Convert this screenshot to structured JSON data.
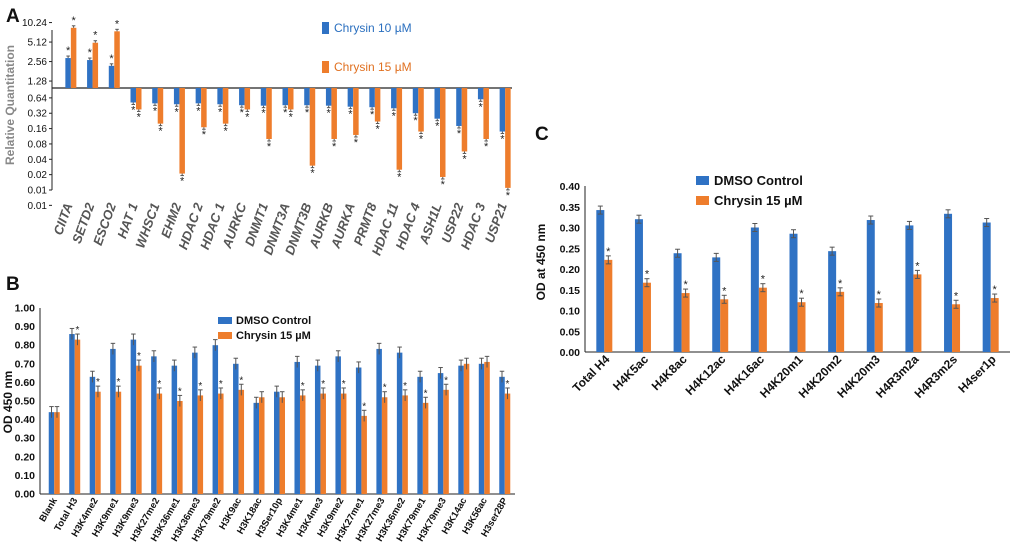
{
  "colors": {
    "blue": "#2f72c4",
    "orange": "#ee7d2c",
    "err": "#555555"
  },
  "chart_data": [
    {
      "panel": "A",
      "type": "bar",
      "ylabel": "Relative Quantitation",
      "yscale": "log2",
      "yticks": [
        "10.24",
        "5.12",
        "2.56",
        "1.28",
        "0.64",
        "0.32",
        "0.16",
        "0.08",
        "0.04",
        "0.02",
        "0.01",
        "0.01"
      ],
      "categories": [
        "CIITA",
        "SETD2",
        "ESCO2",
        "HAT 1",
        "WHSC1",
        "EHM2",
        "HDAC 2",
        "HDAC 1",
        "AURKC",
        "DNMT1",
        "DNMT3A",
        "DNMT3B",
        "AURKB",
        "AURKA",
        "PRMT8",
        "HDAC 11",
        "HDAC 4",
        "ASH1L",
        "USP22",
        "HDAC 3",
        "USP21"
      ],
      "series": [
        {
          "name": "Chrysin 10 µM",
          "values": [
            2.9,
            2.7,
            2.2,
            0.52,
            0.5,
            0.48,
            0.5,
            0.48,
            0.46,
            0.45,
            0.46,
            0.46,
            0.45,
            0.43,
            0.42,
            0.4,
            0.32,
            0.25,
            0.18,
            0.6,
            0.14
          ]
        },
        {
          "name": "Chrysin 15  µM",
          "values": [
            8.5,
            5.0,
            7.5,
            0.38,
            0.2,
            0.021,
            0.17,
            0.2,
            0.38,
            0.1,
            0.38,
            0.03,
            0.1,
            0.12,
            0.22,
            0.025,
            0.14,
            0.018,
            0.057,
            0.1,
            0.011
          ]
        }
      ],
      "sig_marker": "*"
    },
    {
      "panel": "B",
      "type": "bar",
      "ylabel": "OD 450 nm",
      "ylim": [
        0,
        1
      ],
      "yticks": [
        "0.00",
        "0.10",
        "0.20",
        "0.30",
        "0.40",
        "0.50",
        "0.60",
        "0.70",
        "0.80",
        "0.90",
        "1.00"
      ],
      "categories": [
        "Blank",
        "Total H3",
        "H3K4me2",
        "H3K9me1",
        "H3K9me3",
        "H3K27me2",
        "H3K36me1",
        "H3K36me3",
        "H3K79me2",
        "H3K9ac",
        "H3K18ac",
        "H3Ser10p",
        "H3K4me1",
        "H3K4me3",
        "H3K9me2",
        "H3K27me1",
        "H3K27me3",
        "H3K36me2",
        "H3K79me1",
        "H3K79me3",
        "H3K14ac",
        "H3K56ac",
        "H3ser28P"
      ],
      "series": [
        {
          "name": "DMSO Control",
          "values": [
            0.44,
            0.86,
            0.63,
            0.78,
            0.83,
            0.74,
            0.69,
            0.76,
            0.8,
            0.7,
            0.49,
            0.55,
            0.71,
            0.69,
            0.74,
            0.68,
            0.78,
            0.76,
            0.63,
            0.65,
            0.69,
            0.7,
            0.63
          ]
        },
        {
          "name": "Chrysin 15 µM",
          "values": [
            0.44,
            0.83,
            0.55,
            0.55,
            0.69,
            0.54,
            0.5,
            0.53,
            0.54,
            0.56,
            0.52,
            0.52,
            0.53,
            0.54,
            0.54,
            0.42,
            0.52,
            0.53,
            0.49,
            0.56,
            0.7,
            0.71,
            0.54
          ]
        }
      ],
      "significant": [
        false,
        true,
        true,
        true,
        true,
        true,
        true,
        true,
        true,
        true,
        false,
        false,
        true,
        true,
        true,
        true,
        true,
        true,
        true,
        true,
        false,
        false,
        true
      ],
      "sig_marker": "*"
    },
    {
      "panel": "C",
      "type": "bar",
      "ylabel": "OD at 450 nm",
      "ylim": [
        0,
        0.4
      ],
      "yticks": [
        "0.00",
        "0.05",
        "0.10",
        "0.15",
        "0.20",
        "0.25",
        "0.30",
        "0.35",
        "0.40"
      ],
      "categories": [
        "Total H4",
        "H4K5ac",
        "H4K8ac",
        "H4K12ac",
        "H4K16ac",
        "H4K20m1",
        "H4K20m2",
        "H4K20m3",
        "H4R3m2a",
        "H4R3m2s",
        "H4ser1p"
      ],
      "series": [
        {
          "name": "DMSO Control",
          "values": [
            0.342,
            0.32,
            0.238,
            0.228,
            0.3,
            0.285,
            0.243,
            0.318,
            0.305,
            0.333,
            0.312
          ]
        },
        {
          "name": "Chrysin 15 µM",
          "values": [
            0.222,
            0.167,
            0.142,
            0.127,
            0.155,
            0.12,
            0.145,
            0.118,
            0.187,
            0.115,
            0.13
          ]
        }
      ],
      "sig_marker": "*"
    }
  ],
  "labels": {
    "panelA": "A",
    "panelB": "B",
    "panelC": "C"
  }
}
